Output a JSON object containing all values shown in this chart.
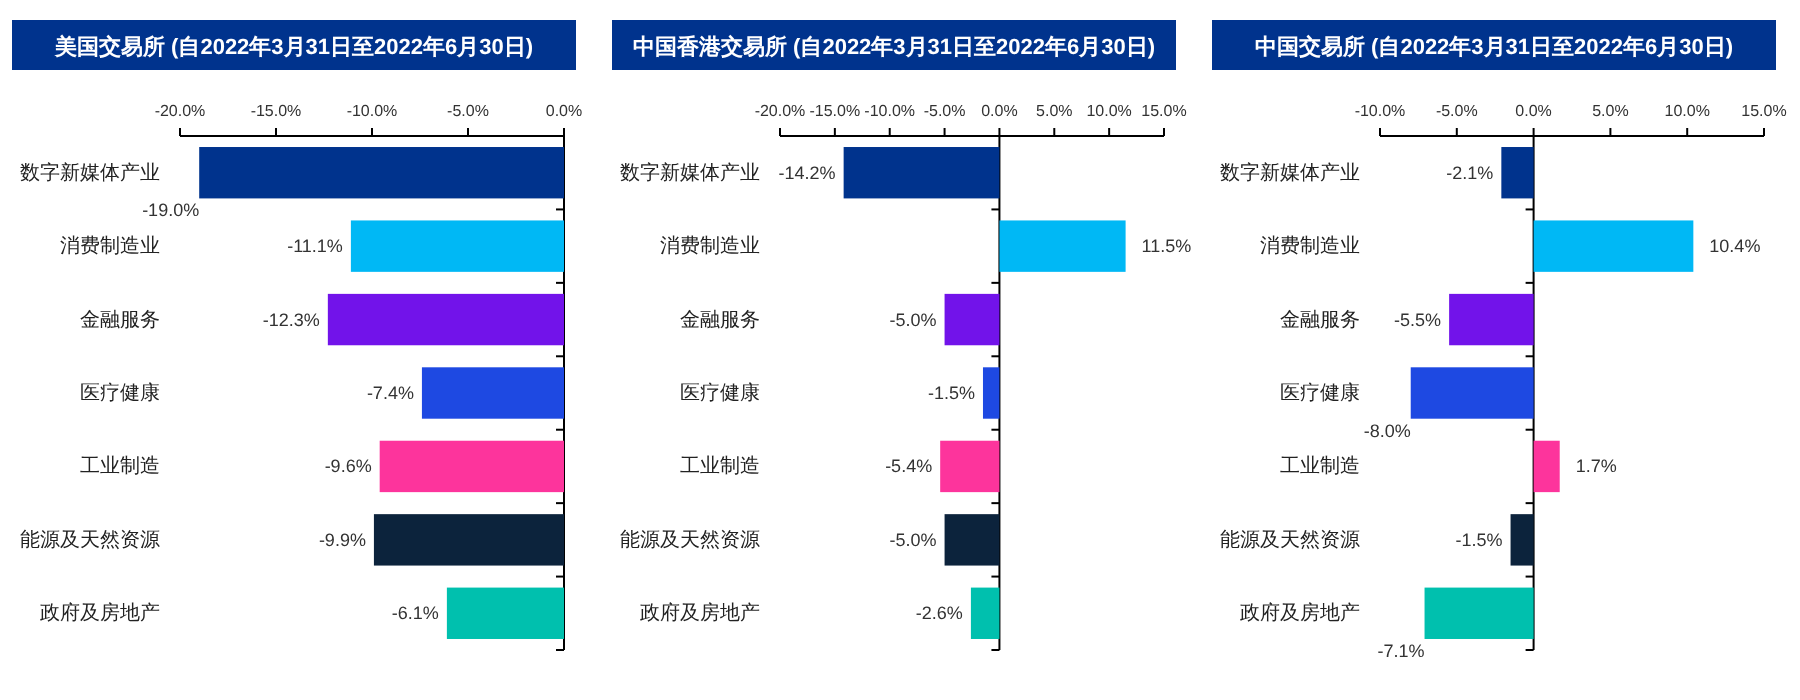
{
  "chart_data": [
    {
      "type": "bar",
      "orientation": "horizontal",
      "title": "美国交易所 (自2022年3月31日至2022年6月30日)",
      "categories": [
        "数字新媒体产业",
        "消费制造业",
        "金融服务",
        "医疗健康",
        "工业制造",
        "能源及天然资源",
        "政府及房地产"
      ],
      "values": [
        -19.0,
        -11.1,
        -12.3,
        -7.4,
        -9.6,
        -9.9,
        -6.1
      ],
      "value_labels": [
        "-19.0%",
        "-11.1%",
        "-12.3%",
        "-7.4%",
        "-9.6%",
        "-9.9%",
        "-6.1%"
      ],
      "colors": [
        "#00338d",
        "#00b8f5",
        "#7213ea",
        "#1e49e2",
        "#fd349c",
        "#0c233c",
        "#00c0ae"
      ],
      "xlim": [
        -20,
        0
      ],
      "xticks": [
        {
          "value": -20,
          "label": "-20.0%"
        },
        {
          "value": -15,
          "label": "-15.0%"
        },
        {
          "value": -10,
          "label": "-10.0%"
        },
        {
          "value": -5,
          "label": "-5.0%"
        },
        {
          "value": 0,
          "label": "0.0%"
        }
      ]
    },
    {
      "type": "bar",
      "orientation": "horizontal",
      "title": "中国香港交易所 (自2022年3月31日至2022年6月30日)",
      "categories": [
        "数字新媒体产业",
        "消费制造业",
        "金融服务",
        "医疗健康",
        "工业制造",
        "能源及天然资源",
        "政府及房地产"
      ],
      "values": [
        -14.2,
        11.5,
        -5.0,
        -1.5,
        -5.4,
        -5.0,
        -2.6
      ],
      "value_labels": [
        "-14.2%",
        "11.5%",
        "-5.0%",
        "-1.5%",
        "-5.4%",
        "-5.0%",
        "-2.6%"
      ],
      "colors": [
        "#00338d",
        "#00b8f5",
        "#7213ea",
        "#1e49e2",
        "#fd349c",
        "#0c233c",
        "#00c0ae"
      ],
      "xlim": [
        -20,
        15
      ],
      "xticks": [
        {
          "value": -20,
          "label": "-20.0%"
        },
        {
          "value": -15,
          "label": "-15.0%"
        },
        {
          "value": -10,
          "label": "-10.0%"
        },
        {
          "value": -5,
          "label": "-5.0%"
        },
        {
          "value": 0,
          "label": "0.0%"
        },
        {
          "value": 5,
          "label": "5.0%"
        },
        {
          "value": 10,
          "label": "10.0%"
        },
        {
          "value": 15,
          "label": "15.0%"
        }
      ]
    },
    {
      "type": "bar",
      "orientation": "horizontal",
      "title": "中国交易所 (自2022年3月31日至2022年6月30日)",
      "categories": [
        "数字新媒体产业",
        "消费制造业",
        "金融服务",
        "医疗健康",
        "工业制造",
        "能源及天然资源",
        "政府及房地产"
      ],
      "values": [
        -2.1,
        10.4,
        -5.5,
        -8.0,
        1.7,
        -1.5,
        -7.1
      ],
      "value_labels": [
        "-2.1%",
        "10.4%",
        "-5.5%",
        "-8.0%",
        "1.7%",
        "-1.5%",
        "-7.1%"
      ],
      "colors": [
        "#00338d",
        "#00b8f5",
        "#7213ea",
        "#1e49e2",
        "#fd349c",
        "#0c233c",
        "#00c0ae"
      ],
      "xlim": [
        -10,
        15
      ],
      "xticks": [
        {
          "value": -10,
          "label": "-10.0%"
        },
        {
          "value": -5,
          "label": "-5.0%"
        },
        {
          "value": 0,
          "label": "0.0%"
        },
        {
          "value": 5,
          "label": "5.0%"
        },
        {
          "value": 10,
          "label": "10.0%"
        },
        {
          "value": 15,
          "label": "15.0%"
        }
      ]
    }
  ]
}
